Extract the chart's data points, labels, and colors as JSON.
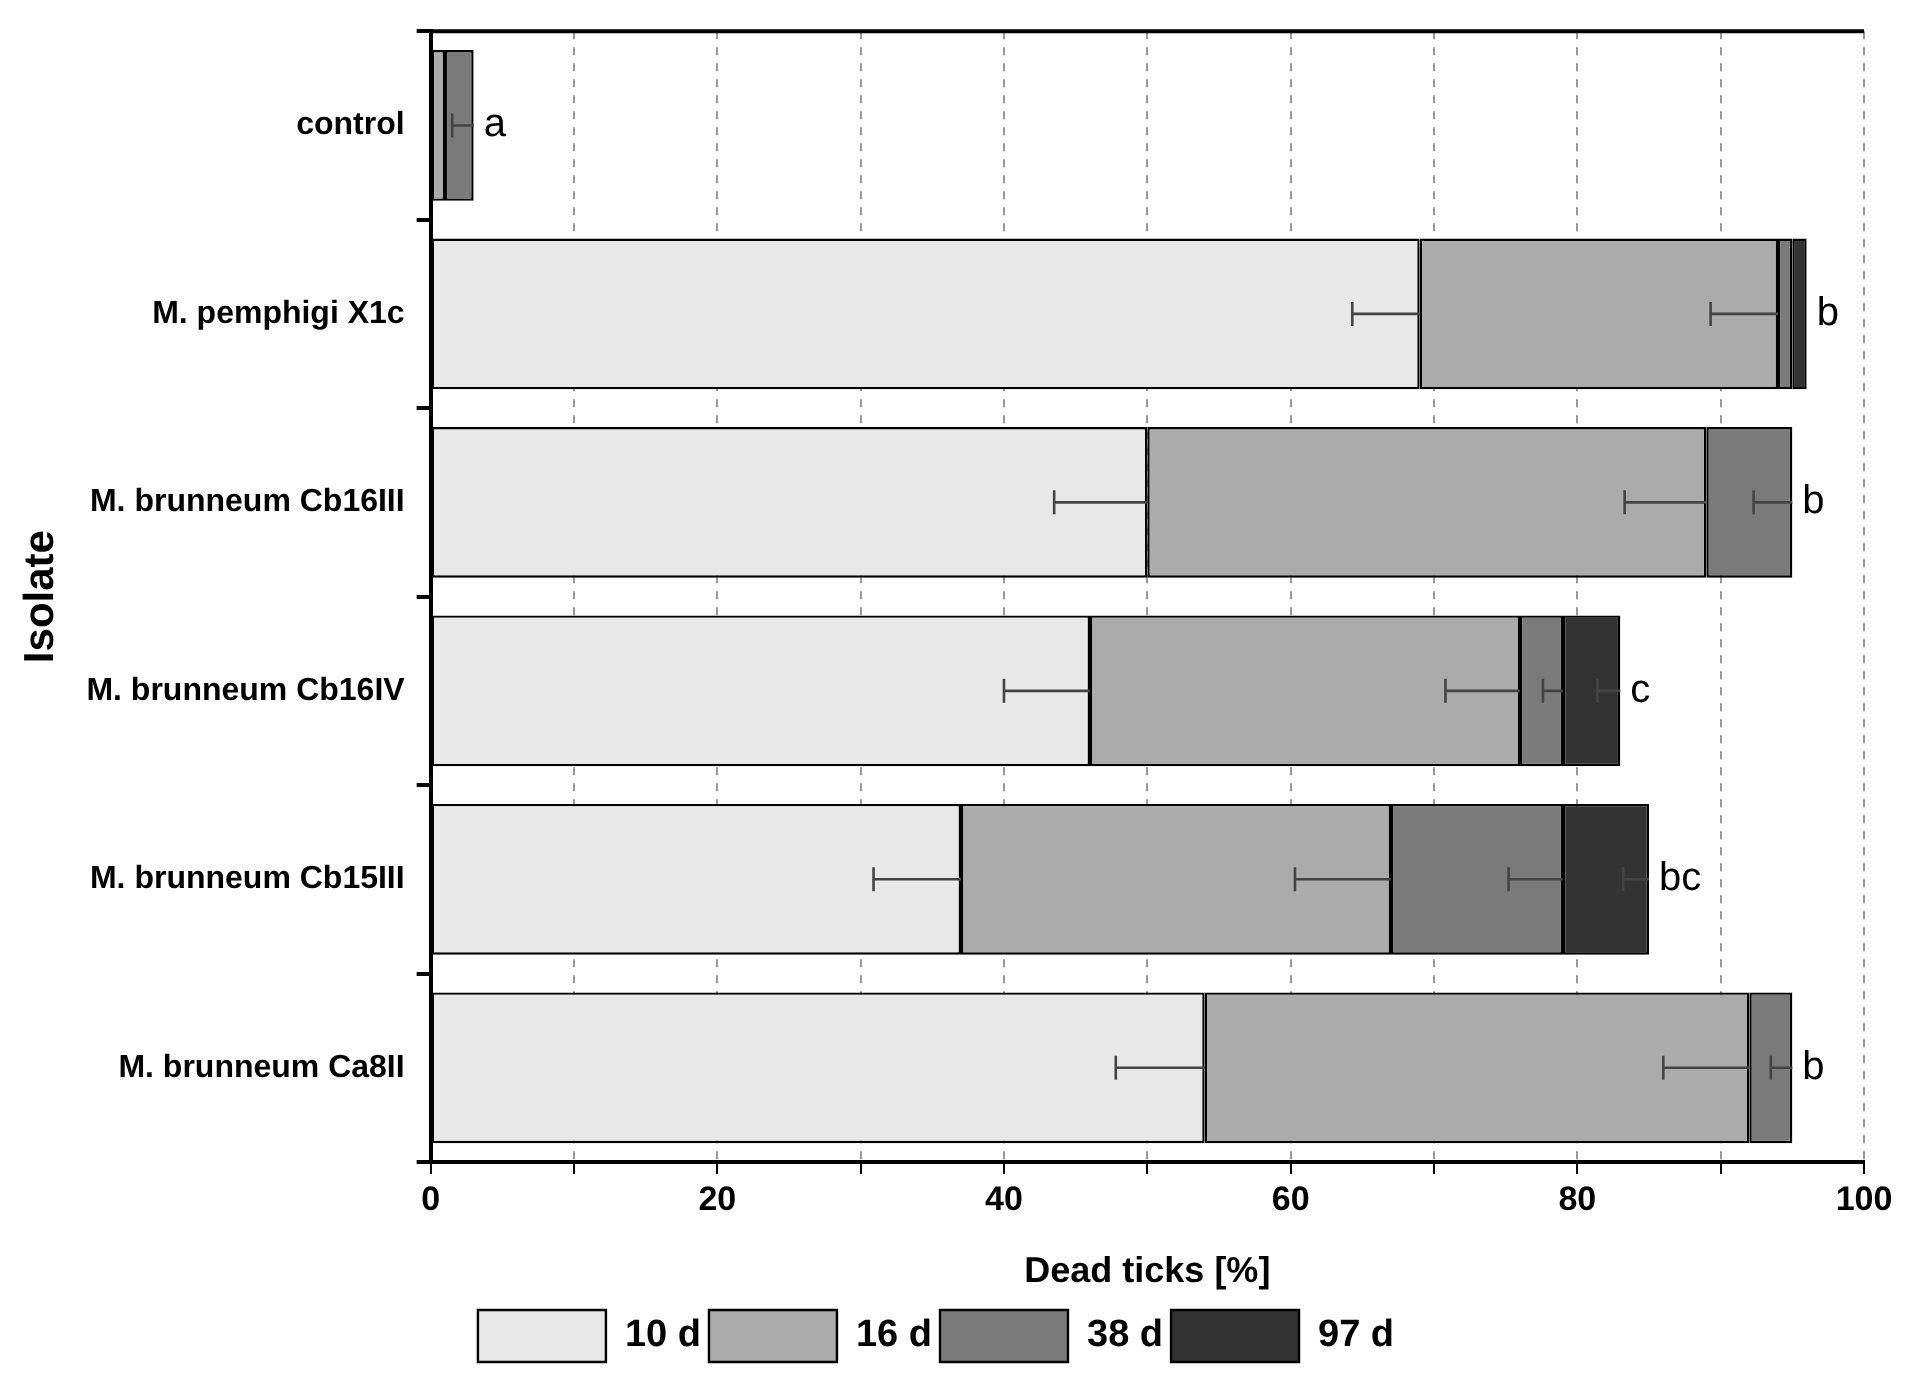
{
  "chart_data": {
    "type": "bar",
    "orientation": "horizontal",
    "stacked": true,
    "xlabel": "Dead ticks [%]",
    "ylabel": "Isolate",
    "categories": [
      "control",
      "M. pemphigi X1c",
      "M. brunneum Cb16III",
      "M. brunneum Cb16IV",
      "M. brunneum Cb15III",
      "M. brunneum Ca8II"
    ],
    "series": [
      {
        "name": "10 d",
        "color": "#e8e8e8",
        "values": [
          0,
          69,
          50,
          46,
          37,
          54
        ],
        "errors": [
          null,
          [
            64.3,
            69
          ],
          [
            43.5,
            50
          ],
          [
            40,
            46
          ],
          [
            30.9,
            37
          ],
          [
            47.8,
            54
          ]
        ]
      },
      {
        "name": "16 d",
        "color": "#ababab",
        "values": [
          1,
          25,
          39,
          30,
          30,
          38
        ],
        "errors": [
          null,
          [
            89.3,
            94
          ],
          [
            83.3,
            89
          ],
          [
            70.8,
            76
          ],
          [
            60.3,
            67
          ],
          [
            86,
            92
          ]
        ]
      },
      {
        "name": "38 d",
        "color": "#7a7a7a",
        "values": [
          2,
          1,
          6,
          3,
          12,
          3
        ],
        "errors": [
          [
            1.5,
            3
          ],
          null,
          [
            92.3,
            95
          ],
          [
            77.6,
            79
          ],
          [
            75.2,
            79
          ],
          [
            93.5,
            95
          ]
        ]
      },
      {
        "name": "97 d",
        "color": "#333333",
        "values": [
          0,
          1,
          0,
          4,
          6,
          0
        ],
        "errors": [
          null,
          null,
          null,
          [
            81.4,
            83
          ],
          [
            83.2,
            85
          ],
          null
        ]
      }
    ],
    "xlim": [
      0,
      100
    ],
    "xticks": [
      0,
      {
        "value": 10,
        "label": null
      },
      20,
      {
        "value": 30,
        "label": null
      },
      40,
      {
        "value": 50,
        "label": null
      },
      60,
      {
        "value": 70,
        "label": null
      },
      80,
      {
        "value": 90,
        "label": null
      },
      100
    ],
    "grid": "x",
    "legend": "bottom",
    "annotations": [
      {
        "text": "a",
        "x": 3,
        "y": "control"
      },
      {
        "text": "b",
        "x": 96,
        "y": "M. pemphigi X1c"
      },
      {
        "text": "b",
        "x": 95,
        "y": "M. brunneum Cb16III"
      },
      {
        "text": "c",
        "x": 83,
        "y": "M. brunneum Cb16IV"
      },
      {
        "text": "bc",
        "x": 85,
        "y": "M. brunneum Cb15III"
      },
      {
        "text": "b",
        "x": 95,
        "y": "M. brunneum Ca8II"
      }
    ]
  }
}
